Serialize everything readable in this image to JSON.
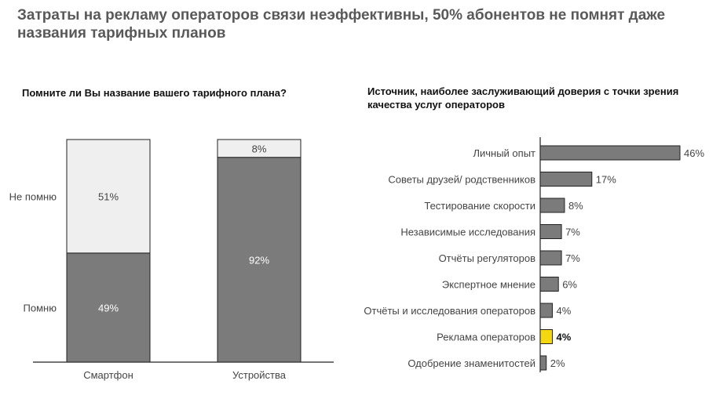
{
  "page": {
    "title": "Затраты на рекламу операторов связи неэффективны, 50% абонентов не помнят даже названия тарифных планов"
  },
  "colors": {
    "dark_gray": "#7b7b7b",
    "light_gray": "#efefef",
    "highlight": "#f5d80f",
    "bar_stroke": "#222222",
    "axis": "#222222",
    "text": "#444444"
  },
  "chart_data": [
    {
      "type": "bar",
      "stacked": true,
      "percent_stacked": true,
      "title": "Помните ли Вы название вашего тарифного плана?",
      "categories": [
        "Смартфон",
        "Устройства"
      ],
      "series": [
        {
          "name": "Помню",
          "values": [
            49,
            92
          ],
          "labels": [
            "49%",
            "92%"
          ],
          "color": "#7b7b7b"
        },
        {
          "name": "Не помню",
          "values": [
            51,
            8
          ],
          "labels": [
            "51%",
            "8%"
          ],
          "color": "#efefef"
        }
      ],
      "ylim": [
        0,
        100
      ],
      "grid": false
    },
    {
      "type": "bar",
      "orientation": "horizontal",
      "title": "Источник, наиболее заслуживающий доверия с точки зрения качества услуг операторов",
      "categories": [
        "Личный опыт",
        "Советы друзей/ родственников",
        "Тестирование скорости",
        "Независимые исследования",
        "Отчёты регуляторов",
        "Экспертное мнение",
        "Отчёты и исследования операторов",
        "Реклама операторов",
        "Одобрение знаменитостей"
      ],
      "values": [
        46,
        17,
        8,
        7,
        7,
        6,
        4,
        4,
        2
      ],
      "labels": [
        "46%",
        "17%",
        "8%",
        "7%",
        "7%",
        "6%",
        "4%",
        "4%",
        "2%"
      ],
      "highlight_index": 7,
      "xlim": [
        0,
        46
      ],
      "grid": false
    }
  ]
}
